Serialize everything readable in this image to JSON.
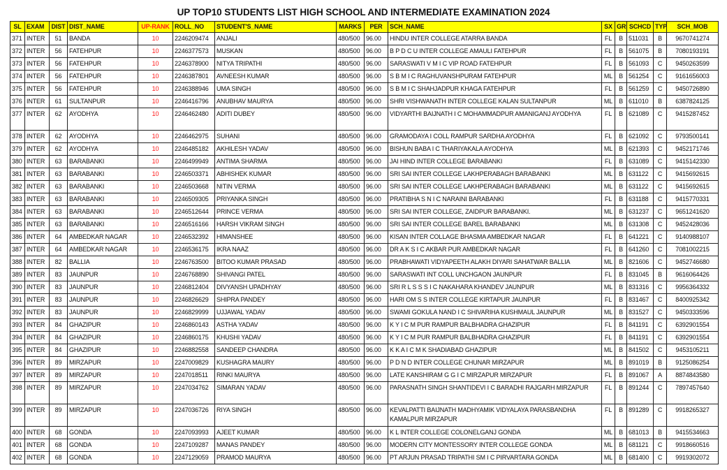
{
  "title": "UP TOP10 STUDENTS LIST HIGH SCHOOL AND INTERMEDIATE EXAMINATION 2024",
  "colors": {
    "header_bg": "#ffff00",
    "rank_text": "#ff1a1a"
  },
  "columns": [
    "SL",
    "EXAM",
    "DIST",
    "DIST_NAME",
    "UP-RANK",
    "ROLL_NO",
    "STUDENT'S_NAME",
    "MARKS",
    "PER",
    "SCH_NAME",
    "SX",
    "GRP",
    "SCHCD",
    "TYP",
    "SCH_MOB"
  ],
  "rows": [
    [
      "371",
      "INTER",
      "51",
      "BANDA",
      "10",
      "2246209474",
      "ANJALI",
      "480/500",
      "96.00",
      "HINDU INTER COLLEGE ATARRA BANDA",
      "FL",
      "B",
      "511031",
      "B",
      "9670741274"
    ],
    [
      "372",
      "INTER",
      "56",
      "FATEHPUR",
      "10",
      "2246377573",
      "MUSKAN",
      "480/500",
      "96.00",
      "B P D C U INTER COLLEGE AMAULI FATEHPUR",
      "FL",
      "B",
      "561075",
      "B",
      "7080193191"
    ],
    [
      "373",
      "INTER",
      "56",
      "FATEHPUR",
      "10",
      "2246378900",
      "NITYA TRIPATHI",
      "480/500",
      "96.00",
      "SARASWATI V M I C VIP ROAD FATEHPUR",
      "FL",
      "B",
      "561093",
      "C",
      "9450263599"
    ],
    [
      "374",
      "INTER",
      "56",
      "FATEHPUR",
      "10",
      "2246387801",
      "AVNEESH KUMAR",
      "480/500",
      "96.00",
      "S B M I C RAGHUVANSHPURAM FATEHPUR",
      "ML",
      "B",
      "561254",
      "C",
      "9161656003"
    ],
    [
      "375",
      "INTER",
      "56",
      "FATEHPUR",
      "10",
      "2246388946",
      "UMA SINGH",
      "480/500",
      "96.00",
      "S B M I C SHAHJADPUR KHAGA FATEHPUR",
      "FL",
      "B",
      "561259",
      "C",
      "9450726890"
    ],
    [
      "376",
      "INTER",
      "61",
      "SULTANPUR",
      "10",
      "2246416796",
      "ANUBHAV MAURYA",
      "480/500",
      "96.00",
      "SHRI VISHWANATH INTER COLLEGE KALAN SULTANPUR",
      "ML",
      "B",
      "611010",
      "B",
      "6387824125"
    ],
    [
      "377",
      "INTER",
      "62",
      "AYODHYA",
      "10",
      "2246462480",
      "ADITI DUBEY",
      "480/500",
      "96.00",
      "VIDYARTHI BAIJNATH I C MOHAMMADPUR AMANIGANJ AYODHYA",
      "FL",
      "B",
      "621089",
      "C",
      "9415287452"
    ],
    [
      "378",
      "INTER",
      "62",
      "AYODHYA",
      "10",
      "2246462975",
      "SUHANI",
      "480/500",
      "96.00",
      "GRAMODAYA I COLL RAMPUR SARDHA AYODHYA",
      "FL",
      "B",
      "621092",
      "C",
      "9793500141"
    ],
    [
      "379",
      "INTER",
      "62",
      "AYODHYA",
      "10",
      "2246485182",
      "AKHILESH YADAV",
      "480/500",
      "96.00",
      "BISHUN BABA I C THARIYAKALA AYODHYA",
      "ML",
      "B",
      "621393",
      "C",
      "9452171746"
    ],
    [
      "380",
      "INTER",
      "63",
      "BARABANKI",
      "10",
      "2246499949",
      "ANTIMA SHARMA",
      "480/500",
      "96.00",
      "JAI HIND INTER COLLEGE BARABANKI",
      "FL",
      "B",
      "631089",
      "C",
      "9415142330"
    ],
    [
      "381",
      "INTER",
      "63",
      "BARABANKI",
      "10",
      "2246503371",
      "ABHISHEK KUMAR",
      "480/500",
      "96.00",
      "SRI SAI INTER COLLEGE LAKHPERABAGH BARABANKI",
      "ML",
      "B",
      "631122",
      "C",
      "9415692615"
    ],
    [
      "382",
      "INTER",
      "63",
      "BARABANKI",
      "10",
      "2246503668",
      "NITIN VERMA",
      "480/500",
      "96.00",
      "SRI SAI INTER COLLEGE LAKHPERABAGH BARABANKI",
      "ML",
      "B",
      "631122",
      "C",
      "9415692615"
    ],
    [
      "383",
      "INTER",
      "63",
      "BARABANKI",
      "10",
      "2246509305",
      "PRIYANKA SINGH",
      "480/500",
      "96.00",
      "PRATIBHA S N I C NARAINI BARABANKI",
      "FL",
      "B",
      "631188",
      "C",
      "9415770331"
    ],
    [
      "384",
      "INTER",
      "63",
      "BARABANKI",
      "10",
      "2246512644",
      "PRINCE VERMA",
      "480/500",
      "96.00",
      "SRI SAI INTER COLLEGE, ZAIDPUR BARABANKI.",
      "ML",
      "B",
      "631237",
      "C",
      "9651241620"
    ],
    [
      "385",
      "INTER",
      "63",
      "BARABANKI",
      "10",
      "2246516166",
      "HARSH VIKRAM SINGH",
      "480/500",
      "96.00",
      "SRI SAI INTER COLLEGE BAREL BARABANKI",
      "ML",
      "B",
      "631308",
      "C",
      "9452428036"
    ],
    [
      "386",
      "INTER",
      "64",
      "AMBEDKAR NAGAR",
      "10",
      "2246532392",
      "HIMANSHEE",
      "480/500",
      "96.00",
      "KISAN INTER COLLAGE BHASMA AMBEDKAR NAGAR",
      "FL",
      "B",
      "641221",
      "C",
      "9140988107"
    ],
    [
      "387",
      "INTER",
      "64",
      "AMBEDKAR NAGAR",
      "10",
      "2246536175",
      "IKRA NAAZ",
      "480/500",
      "96.00",
      "DR A K S I C AKBAR PUR AMBEDKAR NAGAR",
      "FL",
      "B",
      "641260",
      "C",
      "7081002215"
    ],
    [
      "388",
      "INTER",
      "82",
      "BALLIA",
      "10",
      "2246763500",
      "BITOO KUMAR PRASAD",
      "480/500",
      "96.00",
      "PRABHAWATI VIDYAPEETH ALAKH DIYARI SAHATWAR BALLIA",
      "ML",
      "B",
      "821606",
      "C",
      "9452746680"
    ],
    [
      "389",
      "INTER",
      "83",
      "JAUNPUR",
      "10",
      "2246768890",
      "SHIVANGI PATEL",
      "480/500",
      "96.00",
      "SARASWATI INT COLL UNCHGAON JAUNPUR",
      "FL",
      "B",
      "831045",
      "B",
      "9616064426"
    ],
    [
      "390",
      "INTER",
      "83",
      "JAUNPUR",
      "10",
      "2246812404",
      "DIVYANSH UPADHYAY",
      "480/500",
      "96.00",
      "SRI R L S S S I C NAKAHARA KHANDEV JAUNPUR",
      "ML",
      "B",
      "831316",
      "C",
      "9956364332"
    ],
    [
      "391",
      "INTER",
      "83",
      "JAUNPUR",
      "10",
      "2246826629",
      "SHIPRA PANDEY",
      "480/500",
      "96.00",
      "HARI OM S S INTER COLLEGE KIRTAPUR JAUNPUR",
      "FL",
      "B",
      "831467",
      "C",
      "8400925342"
    ],
    [
      "392",
      "INTER",
      "83",
      "JAUNPUR",
      "10",
      "2246829999",
      "UJJAWAL YADAV",
      "480/500",
      "96.00",
      "SWAMI GOKULA NAND I C SHIVARIHA KUSHMAUL JAUNPUR",
      "ML",
      "B",
      "831527",
      "C",
      "9450333596"
    ],
    [
      "393",
      "INTER",
      "84",
      "GHAZIPUR",
      "10",
      "2246860143",
      "ASTHA YADAV",
      "480/500",
      "96.00",
      "K Y I C M PUR RAMPUR BALBHADRA GHAZIPUR",
      "FL",
      "B",
      "841191",
      "C",
      "6392901554"
    ],
    [
      "394",
      "INTER",
      "84",
      "GHAZIPUR",
      "10",
      "2246860175",
      "KHUSHI YADAV",
      "480/500",
      "96.00",
      "K Y I C M PUR RAMPUR BALBHADRA GHAZIPUR",
      "FL",
      "B",
      "841191",
      "C",
      "6392901554"
    ],
    [
      "395",
      "INTER",
      "84",
      "GHAZIPUR",
      "10",
      "2246882558",
      "SANDEEP CHANDRA",
      "480/500",
      "96.00",
      "K K A I C M K SHADIABAD GHAZIPUR",
      "ML",
      "B",
      "841502",
      "C",
      "9453105211"
    ],
    [
      "396",
      "INTER",
      "89",
      "MIRZAPUR",
      "10",
      "2247009829",
      "KUSHAGRA MAURY",
      "480/500",
      "96.00",
      "P D N D INTER COLLEGE CHUNAR MIRZAPUR",
      "ML",
      "B",
      "891019",
      "B",
      "9125086254"
    ],
    [
      "397",
      "INTER",
      "89",
      "MIRZAPUR",
      "10",
      "2247018511",
      "RINKI MAURYA",
      "480/500",
      "96.00",
      "LATE KANSHIRAM G G I C MIRZAPUR MIRZAPUR",
      "FL",
      "B",
      "891067",
      "A",
      "8874843580"
    ],
    [
      "398",
      "INTER",
      "89",
      "MIRZAPUR",
      "10",
      "2247034762",
      "SIMARAN YADAV",
      "480/500",
      "96.00",
      "PARASNATH SINGH SHANTIDEVI I C BARADHI RAJGARH MIRZAPUR",
      "FL",
      "B",
      "891244",
      "C",
      "7897457640"
    ],
    [
      "399",
      "INTER",
      "89",
      "MIRZAPUR",
      "10",
      "2247036726",
      "RIYA SINGH",
      "480/500",
      "96.00",
      "KEVALPATTI BAIJNATH MADHYAMIK VIDYALAYA PARASBANDHA KAMALPUR MIRZAPUR",
      "FL",
      "B",
      "891289",
      "C",
      "9918265327"
    ],
    [
      "400",
      "INTER",
      "68",
      "GONDA",
      "10",
      "2247093993",
      "AJEET KUMAR",
      "480/500",
      "96.00",
      "K L INTER COLLEGE COLONELGANJ GONDA",
      "ML",
      "B",
      "681013",
      "B",
      "9415534663"
    ],
    [
      "401",
      "INTER",
      "68",
      "GONDA",
      "10",
      "2247109287",
      "MANAS PANDEY",
      "480/500",
      "96.00",
      "MODERN CITY MONTESSORY INTER COLLEGE GONDA",
      "ML",
      "B",
      "681121",
      "C",
      "9918660516"
    ],
    [
      "402",
      "INTER",
      "68",
      "GONDA",
      "10",
      "2247129059",
      "PRAMOD MAURYA",
      "480/500",
      "96.00",
      "PT ARJUN PRASAD TRIPATHI SM I C PIRVARTARA GONDA",
      "ML",
      "B",
      "681400",
      "C",
      "9919302072"
    ]
  ]
}
